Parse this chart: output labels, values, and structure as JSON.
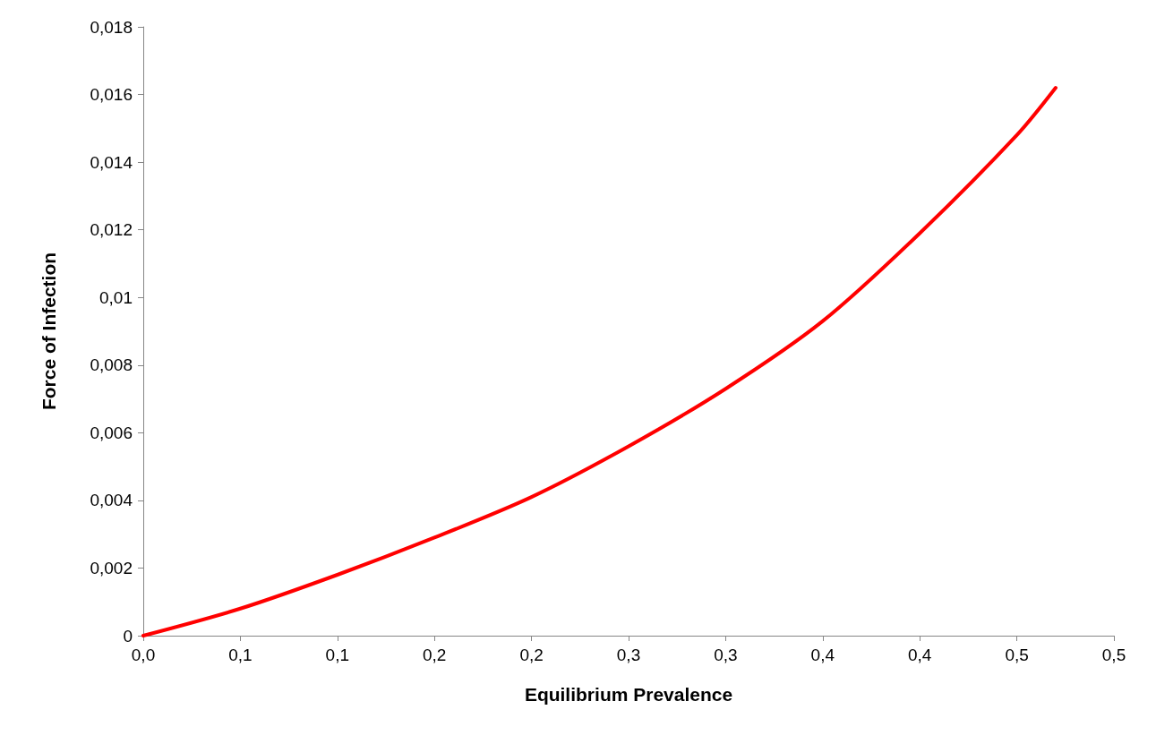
{
  "chart_data": {
    "type": "line",
    "xlabel": "Equilibrium Prevalence",
    "ylabel": "Force of Infection",
    "x": [
      0,
      0.05,
      0.1,
      0.15,
      0.2,
      0.25,
      0.3,
      0.35,
      0.4,
      0.45,
      0.47
    ],
    "series": [
      {
        "color": "#ff0000",
        "values": [
          0,
          0.0008,
          0.0018,
          0.0029,
          0.0041,
          0.0056,
          0.0073,
          0.0093,
          0.0119,
          0.0148,
          0.0162
        ]
      }
    ],
    "xlim": [
      0,
      0.5
    ],
    "xticks": [
      {
        "value": 0,
        "label": "0,0"
      },
      {
        "value": 0.05,
        "label": "0,1"
      },
      {
        "value": 0.1,
        "label": "0,1"
      },
      {
        "value": 0.15,
        "label": "0,2"
      },
      {
        "value": 0.2,
        "label": "0,2"
      },
      {
        "value": 0.25,
        "label": "0,3"
      },
      {
        "value": 0.3,
        "label": "0,3"
      },
      {
        "value": 0.35,
        "label": "0,4"
      },
      {
        "value": 0.4,
        "label": "0,4"
      },
      {
        "value": 0.45,
        "label": "0,5"
      },
      {
        "value": 0.5,
        "label": "0,5"
      }
    ],
    "ylim": [
      0,
      0.018
    ],
    "yticks": [
      0,
      {
        "value": 0.002,
        "label": "0,002"
      },
      {
        "value": 0.004,
        "label": "0,004"
      },
      {
        "value": 0.006,
        "label": "0,006"
      },
      {
        "value": 0.008,
        "label": "0,008"
      },
      {
        "value": 0.01,
        "label": "0,01"
      },
      {
        "value": 0.012,
        "label": "0,012"
      },
      {
        "value": 0.014,
        "label": "0,014"
      },
      {
        "value": 0.016,
        "label": "0,016"
      },
      {
        "value": 0.018,
        "label": "0,018"
      }
    ],
    "grid": false,
    "marker": "none",
    "line_style": "solid"
  }
}
